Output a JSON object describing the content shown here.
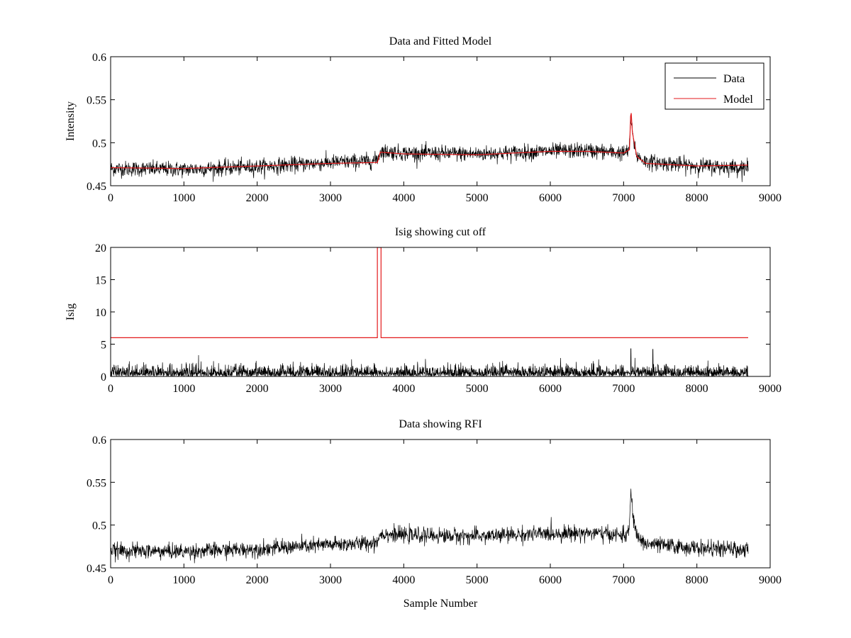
{
  "chart_data": [
    {
      "type": "line",
      "title": "Data and Fitted Model",
      "xlabel": "",
      "ylabel": "Intensity",
      "xlim": [
        0,
        9000
      ],
      "ylim": [
        0.45,
        0.6
      ],
      "xticks": [
        0,
        1000,
        2000,
        3000,
        4000,
        5000,
        6000,
        7000,
        8000,
        9000
      ],
      "yticks": [
        0.45,
        0.5,
        0.55,
        0.6
      ],
      "ytick_labels": [
        "0.45",
        "0.5",
        "0.55",
        "0.6"
      ],
      "legend": {
        "placement": "top-right",
        "entries": [
          "Data",
          "Model"
        ]
      },
      "series": [
        {
          "name": "Data",
          "color": "#000000",
          "noise": 0.0045,
          "keypoints": [
            [
              0,
              0.47
            ],
            [
              1000,
              0.469
            ],
            [
              2000,
              0.472
            ],
            [
              3000,
              0.477
            ],
            [
              3600,
              0.479
            ],
            [
              3660,
              0.484
            ],
            [
              3680,
              0.49
            ],
            [
              4000,
              0.488
            ],
            [
              5000,
              0.487
            ],
            [
              6000,
              0.49
            ],
            [
              6500,
              0.491
            ],
            [
              7000,
              0.488
            ],
            [
              7070,
              0.49
            ],
            [
              7100,
              0.527
            ],
            [
              7130,
              0.505
            ],
            [
              7180,
              0.485
            ],
            [
              7300,
              0.478
            ],
            [
              8000,
              0.473
            ],
            [
              8700,
              0.471
            ]
          ]
        },
        {
          "name": "Model",
          "color": "#e31a1c",
          "noise": 0,
          "keypoints": [
            [
              0,
              0.471
            ],
            [
              1000,
              0.47
            ],
            [
              2000,
              0.473
            ],
            [
              3000,
              0.476
            ],
            [
              3640,
              0.477
            ],
            [
              3680,
              0.489
            ],
            [
              4000,
              0.487
            ],
            [
              5000,
              0.486
            ],
            [
              6000,
              0.49
            ],
            [
              6500,
              0.49
            ],
            [
              7000,
              0.488
            ],
            [
              7080,
              0.492
            ],
            [
              7100,
              0.54
            ],
            [
              7120,
              0.512
            ],
            [
              7180,
              0.484
            ],
            [
              7300,
              0.476
            ],
            [
              8000,
              0.473
            ],
            [
              8700,
              0.474
            ]
          ]
        }
      ]
    },
    {
      "type": "line",
      "title": "Isig showing cut off",
      "xlabel": "",
      "ylabel": "Isig",
      "xlim": [
        0,
        9000
      ],
      "ylim": [
        0,
        20
      ],
      "xticks": [
        0,
        1000,
        2000,
        3000,
        4000,
        5000,
        6000,
        7000,
        8000,
        9000
      ],
      "yticks": [
        0,
        5,
        10,
        15,
        20
      ],
      "ytick_labels": [
        "0",
        "5",
        "10",
        "15",
        "20"
      ],
      "series": [
        {
          "name": "Isig",
          "color": "#000000",
          "kind": "abs-noise",
          "noise": 1.0,
          "spikes": [
            [
              7100,
              4.3
            ],
            [
              7400,
              4.2
            ],
            [
              1200,
              3.3
            ]
          ],
          "x_range": [
            0,
            8700
          ]
        },
        {
          "name": "Cut off",
          "color": "#e31a1c",
          "kind": "step",
          "points": [
            [
              0,
              6
            ],
            [
              3640,
              6
            ],
            [
              3640,
              20
            ],
            [
              3690,
              20
            ],
            [
              3690,
              6
            ],
            [
              8700,
              6
            ]
          ]
        }
      ]
    },
    {
      "type": "line",
      "title": "Data showing RFI",
      "xlabel": "Sample Number",
      "ylabel": "",
      "xlim": [
        0,
        9000
      ],
      "ylim": [
        0.45,
        0.6
      ],
      "xticks": [
        0,
        1000,
        2000,
        3000,
        4000,
        5000,
        6000,
        7000,
        8000,
        9000
      ],
      "yticks": [
        0.45,
        0.5,
        0.55,
        0.6
      ],
      "ytick_labels": [
        "0.45",
        "0.5",
        "0.55",
        "0.6"
      ],
      "series": [
        {
          "name": "Data",
          "color": "#000000",
          "noise": 0.0045,
          "keypoints": [
            [
              0,
              0.47
            ],
            [
              1000,
              0.469
            ],
            [
              2000,
              0.472
            ],
            [
              3000,
              0.477
            ],
            [
              3600,
              0.479
            ],
            [
              3660,
              0.484
            ],
            [
              3680,
              0.49
            ],
            [
              4000,
              0.488
            ],
            [
              5000,
              0.487
            ],
            [
              6000,
              0.49
            ],
            [
              6500,
              0.491
            ],
            [
              7000,
              0.488
            ],
            [
              7070,
              0.49
            ],
            [
              7100,
              0.537
            ],
            [
              7130,
              0.51
            ],
            [
              7180,
              0.487
            ],
            [
              7300,
              0.478
            ],
            [
              8000,
              0.473
            ],
            [
              8700,
              0.471
            ]
          ]
        }
      ]
    }
  ]
}
